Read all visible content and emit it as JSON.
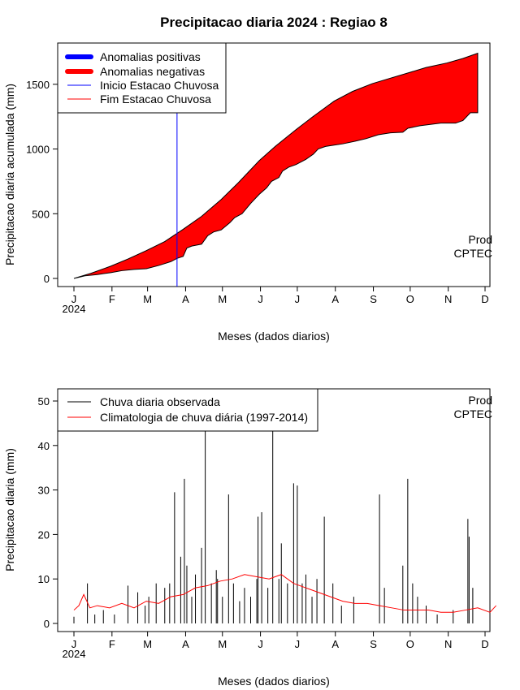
{
  "title": "Precipitacao diaria 2024 : Regiao 8",
  "credit": {
    "line1": "Prod",
    "line2": "CPTEC"
  },
  "month_labels": [
    "J",
    "F",
    "M",
    "A",
    "M",
    "J",
    "J",
    "A",
    "S",
    "O",
    "N",
    "D"
  ],
  "year_label": "2024",
  "chart_data": [
    {
      "type": "area",
      "xlabel": "Meses (dados diarios)",
      "ylabel": "Precipitacao diaria acumulada (mm)",
      "ylim": [
        0,
        1750
      ],
      "yticks": [
        0,
        500,
        1000,
        1500
      ],
      "x_unit": "day of year 2024",
      "legend": {
        "placement": "top-left",
        "items": [
          {
            "label": "Anomalias positivas",
            "color": "#0000ff"
          },
          {
            "label": "Anomalias negativas",
            "color": "#ff0000"
          },
          {
            "label": "Inicio Estacao Chuvosa",
            "color": "#0000ff"
          },
          {
            "label": "Fim Estacao Chuvosa",
            "color": "#ff0000"
          }
        ]
      },
      "rainy_season_start_day": 85,
      "series": [
        {
          "name": "Climatologia acumulada",
          "points": [
            [
              1,
              0
            ],
            [
              15,
              40
            ],
            [
              31,
              95
            ],
            [
              45,
              150
            ],
            [
              60,
              215
            ],
            [
              75,
              285
            ],
            [
              90,
              380
            ],
            [
              105,
              480
            ],
            [
              121,
              610
            ],
            [
              135,
              740
            ],
            [
              152,
              910
            ],
            [
              165,
              1020
            ],
            [
              182,
              1150
            ],
            [
              195,
              1245
            ],
            [
              213,
              1370
            ],
            [
              228,
              1445
            ],
            [
              244,
              1505
            ],
            [
              258,
              1545
            ],
            [
              274,
              1590
            ],
            [
              288,
              1630
            ],
            [
              305,
              1665
            ],
            [
              318,
              1700
            ],
            [
              330,
              1740
            ]
          ]
        },
        {
          "name": "Observado acumulado",
          "points": [
            [
              1,
              0
            ],
            [
              10,
              20
            ],
            [
              20,
              30
            ],
            [
              31,
              45
            ],
            [
              40,
              60
            ],
            [
              50,
              70
            ],
            [
              60,
              75
            ],
            [
              70,
              100
            ],
            [
              75,
              115
            ],
            [
              80,
              130
            ],
            [
              85,
              155
            ],
            [
              90,
              170
            ],
            [
              93,
              235
            ],
            [
              97,
              250
            ],
            [
              105,
              265
            ],
            [
              110,
              330
            ],
            [
              115,
              360
            ],
            [
              121,
              375
            ],
            [
              128,
              430
            ],
            [
              132,
              470
            ],
            [
              138,
              500
            ],
            [
              145,
              580
            ],
            [
              152,
              650
            ],
            [
              158,
              700
            ],
            [
              162,
              750
            ],
            [
              168,
              780
            ],
            [
              171,
              830
            ],
            [
              176,
              860
            ],
            [
              182,
              880
            ],
            [
              190,
              920
            ],
            [
              196,
              960
            ],
            [
              200,
              1000
            ],
            [
              206,
              1020
            ],
            [
              213,
              1030
            ],
            [
              220,
              1040
            ],
            [
              230,
              1060
            ],
            [
              239,
              1080
            ],
            [
              249,
              1110
            ],
            [
              259,
              1125
            ],
            [
              269,
              1130
            ],
            [
              273,
              1160
            ],
            [
              283,
              1180
            ],
            [
              300,
              1200
            ],
            [
              312,
              1200
            ],
            [
              318,
              1220
            ],
            [
              324,
              1280
            ],
            [
              330,
              1280
            ]
          ]
        }
      ]
    },
    {
      "type": "bar",
      "xlabel": "Meses (dados diarios)",
      "ylabel": "Precipitacao diaria (mm)",
      "ylim": [
        0,
        50
      ],
      "yticks": [
        0,
        10,
        20,
        30,
        40,
        50
      ],
      "x_unit": "day of year 2024",
      "legend": {
        "placement": "top-left",
        "items": [
          {
            "label": "Chuva diaria observada",
            "color": "#000000"
          },
          {
            "label": "Climatologia de chuva diária (1997-2014)",
            "color": "#ff0000"
          }
        ]
      },
      "series": [
        {
          "name": "Chuva diaria observada",
          "days": [
            1,
            12,
            18,
            25,
            34,
            45,
            53,
            59,
            62,
            68,
            75,
            79,
            83,
            88,
            91,
            93,
            97,
            100,
            105,
            108,
            113,
            117,
            118,
            122,
            127,
            131,
            136,
            140,
            145,
            150,
            151,
            154,
            159,
            163,
            168,
            170,
            175,
            180,
            183,
            187,
            190,
            195,
            199,
            205,
            212,
            219,
            229,
            250,
            254,
            269,
            273,
            277,
            281,
            288,
            297,
            310,
            322,
            323,
            326
          ],
          "values": [
            1.5,
            9,
            2,
            3,
            2,
            8.5,
            7,
            4,
            6,
            9,
            8,
            9,
            29.5,
            15,
            32.5,
            13,
            6,
            11,
            17,
            44,
            9,
            12,
            10,
            6,
            29,
            9,
            5,
            8,
            6,
            10,
            24,
            25,
            8,
            44,
            10,
            18,
            9,
            31.5,
            31,
            9,
            11,
            6,
            10,
            24,
            9,
            4,
            6,
            29,
            8,
            13,
            32.5,
            9,
            6,
            4,
            2,
            3,
            23.5,
            19.5,
            8
          ]
        },
        {
          "name": "Climatologia de chuva diária (1997-2014)",
          "points": [
            [
              1,
              3
            ],
            [
              5,
              4
            ],
            [
              9,
              6.5
            ],
            [
              14,
              3.5
            ],
            [
              20,
              4
            ],
            [
              30,
              3.5
            ],
            [
              40,
              4.5
            ],
            [
              50,
              3.5
            ],
            [
              60,
              5
            ],
            [
              70,
              4.5
            ],
            [
              80,
              6
            ],
            [
              90,
              6.5
            ],
            [
              100,
              8
            ],
            [
              110,
              8.5
            ],
            [
              120,
              9.5
            ],
            [
              130,
              10
            ],
            [
              140,
              11
            ],
            [
              150,
              10.5
            ],
            [
              160,
              10
            ],
            [
              170,
              11
            ],
            [
              180,
              9
            ],
            [
              190,
              8
            ],
            [
              200,
              7
            ],
            [
              210,
              6
            ],
            [
              220,
              5
            ],
            [
              230,
              4.5
            ],
            [
              240,
              4.5
            ],
            [
              250,
              4
            ],
            [
              260,
              3.5
            ],
            [
              270,
              3
            ],
            [
              280,
              3
            ],
            [
              290,
              3
            ],
            [
              300,
              2.5
            ],
            [
              310,
              2.5
            ],
            [
              320,
              3
            ],
            [
              330,
              3.5
            ],
            [
              340,
              2.5
            ],
            [
              345,
              4
            ]
          ]
        }
      ]
    }
  ]
}
